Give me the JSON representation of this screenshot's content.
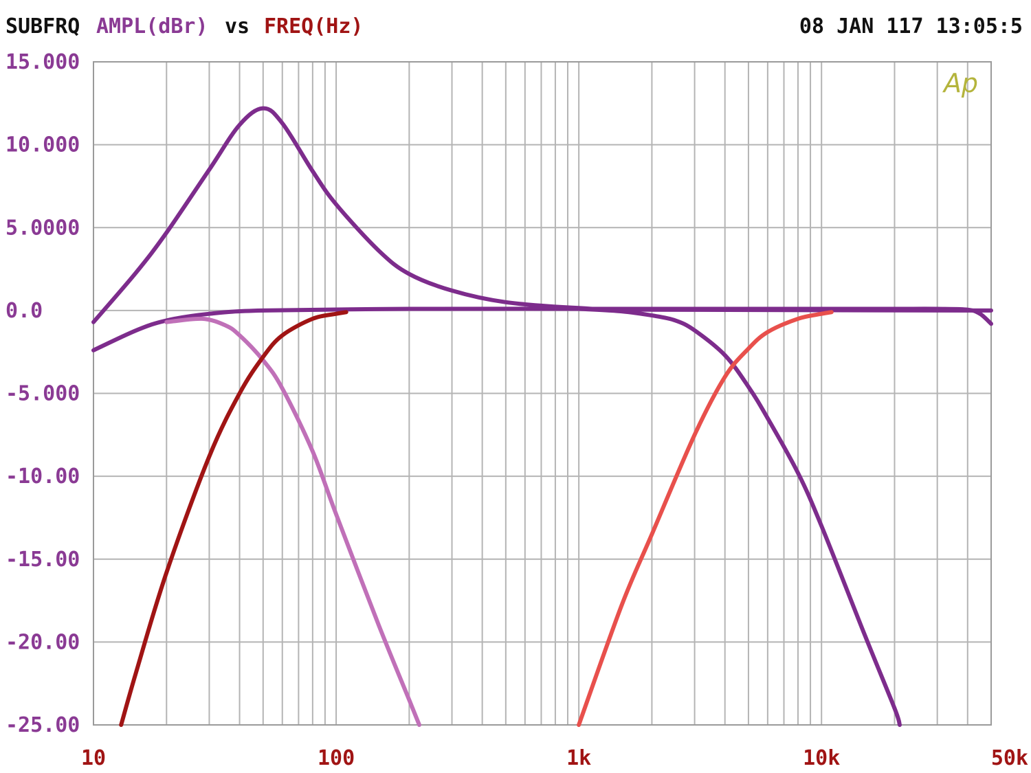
{
  "header": {
    "prefix": "SUBFRQ",
    "yname": "AMPL(dBr)",
    "vs": "vs",
    "xname": "FREQ(Hz)",
    "timestamp": "08 JAN 117 13:05:5"
  },
  "logo": "Ap",
  "colors": {
    "background": "#ffffff",
    "grid": "#b4b4b4",
    "frame": "#9a9a9a",
    "header_text": "#111111",
    "y_text": "#8a3a94",
    "x_text": "#a01414",
    "logo": "#b4b43c"
  },
  "chart_data": {
    "type": "line",
    "title": "SUBFRQ AMPL(dBr) vs FREQ(Hz)",
    "xlabel": "FREQ(Hz)",
    "ylabel": "AMPL(dBr)",
    "x_scale": "log",
    "xlim": [
      10,
      50000
    ],
    "ylim": [
      -25,
      15
    ],
    "grid": true,
    "x_ticks": [
      10,
      100,
      1000,
      10000,
      50000
    ],
    "x_tick_labels": [
      "10",
      "100",
      "1k",
      "10k",
      "50k"
    ],
    "y_ticks": [
      15,
      10,
      5,
      0,
      -5,
      -10,
      -15,
      -20,
      -25
    ],
    "y_tick_labels": [
      "15.000",
      "10.000",
      "5.0000",
      "0.0",
      "-5.000",
      "-10.00",
      "-15.00",
      "-20.00",
      "-25.00"
    ],
    "series": [
      {
        "color": "#7d2c8c",
        "points": [
          [
            10,
            -0.7
          ],
          [
            15,
            2.3
          ],
          [
            20,
            4.7
          ],
          [
            30,
            8.5
          ],
          [
            40,
            11.2
          ],
          [
            50,
            12.2
          ],
          [
            60,
            11.3
          ],
          [
            80,
            8.4
          ],
          [
            100,
            6.4
          ],
          [
            150,
            3.6
          ],
          [
            200,
            2.2
          ],
          [
            300,
            1.2
          ],
          [
            500,
            0.5
          ],
          [
            1000,
            0.15
          ],
          [
            2000,
            0.05
          ],
          [
            50000,
            0.0
          ]
        ]
      },
      {
        "color": "#7d2c8c",
        "points": [
          [
            10,
            -2.4
          ],
          [
            15,
            -1.2
          ],
          [
            20,
            -0.6
          ],
          [
            30,
            -0.2
          ],
          [
            50,
            0.0
          ],
          [
            200,
            0.1
          ],
          [
            1000,
            0.1
          ],
          [
            5000,
            0.1
          ],
          [
            10000,
            0.1
          ],
          [
            20000,
            0.1
          ],
          [
            30000,
            0.1
          ],
          [
            40000,
            0.05
          ],
          [
            45000,
            -0.2
          ],
          [
            50000,
            -0.8
          ]
        ]
      },
      {
        "color": "#c070b8",
        "points": [
          [
            20,
            -0.7
          ],
          [
            28,
            -0.5
          ],
          [
            35,
            -0.9
          ],
          [
            40,
            -1.5
          ],
          [
            50,
            -3.0
          ],
          [
            60,
            -4.7
          ],
          [
            80,
            -8.5
          ],
          [
            100,
            -12.3
          ],
          [
            150,
            -19.0
          ],
          [
            200,
            -23.5
          ],
          [
            220,
            -25.0
          ]
        ]
      },
      {
        "color": "#7d2c8c",
        "points": [
          [
            1000,
            0.1
          ],
          [
            1500,
            -0.05
          ],
          [
            2000,
            -0.3
          ],
          [
            2500,
            -0.6
          ],
          [
            3000,
            -1.2
          ],
          [
            4000,
            -2.7
          ],
          [
            5000,
            -4.6
          ],
          [
            6000,
            -6.5
          ],
          [
            8000,
            -9.8
          ],
          [
            10000,
            -13.0
          ],
          [
            15000,
            -19.5
          ],
          [
            20000,
            -24.0
          ],
          [
            21000,
            -25.0
          ]
        ]
      },
      {
        "color": "#a01414",
        "points": [
          [
            13,
            -25.0
          ],
          [
            15,
            -21.8
          ],
          [
            20,
            -15.8
          ],
          [
            30,
            -8.8
          ],
          [
            40,
            -5.0
          ],
          [
            50,
            -2.8
          ],
          [
            60,
            -1.5
          ],
          [
            80,
            -0.5
          ],
          [
            100,
            -0.2
          ],
          [
            110,
            -0.1
          ]
        ]
      },
      {
        "color": "#e8504c",
        "points": [
          [
            1000,
            -25.0
          ],
          [
            1500,
            -17.8
          ],
          [
            2000,
            -13.5
          ],
          [
            3000,
            -7.5
          ],
          [
            4000,
            -4.0
          ],
          [
            5000,
            -2.3
          ],
          [
            6000,
            -1.3
          ],
          [
            8000,
            -0.5
          ],
          [
            10000,
            -0.2
          ],
          [
            11000,
            -0.1
          ]
        ]
      }
    ]
  }
}
